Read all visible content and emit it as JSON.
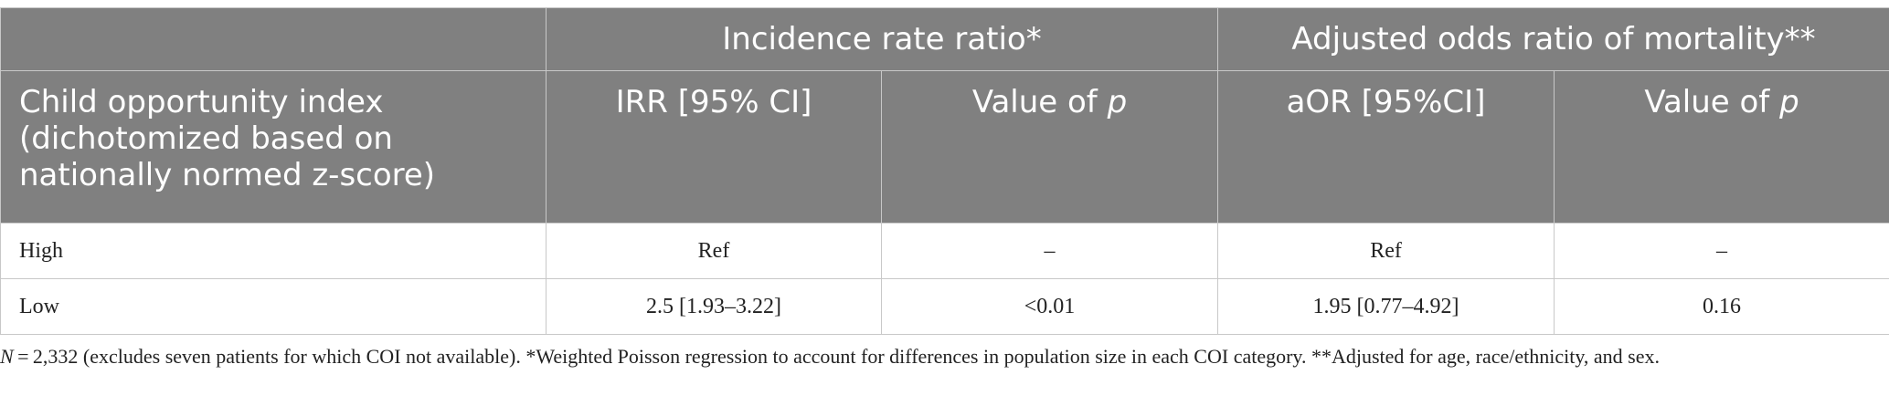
{
  "table": {
    "group_headers": [
      "",
      "Incidence rate ratio*",
      "Adjusted odds ratio of mortality**"
    ],
    "column_headers": {
      "label": "Child opportunity index (dichotomized based on nationally normed z-score)",
      "irr": "IRR [95% CI]",
      "irr_p_prefix": "Value of ",
      "irr_p_var": "p",
      "aor": "aOR [95%CI]",
      "aor_p_prefix": "Value of ",
      "aor_p_var": "p"
    },
    "rows": [
      {
        "label": "High",
        "irr": "Ref",
        "irr_p": "–",
        "aor": "Ref",
        "aor_p": "–"
      },
      {
        "label": "Low",
        "irr": "2.5 [1.93–3.22]",
        "irr_p": "<0.01",
        "aor": "1.95 [0.77–4.92]",
        "aor_p": "0.16"
      }
    ]
  },
  "footnote": {
    "n_var": "N",
    "text": " = 2,332 (excludes seven patients for which COI not available). *Weighted Poisson regression to account for differences in population size in each COI category. **Adjusted for age, race/ethnicity, and sex."
  }
}
